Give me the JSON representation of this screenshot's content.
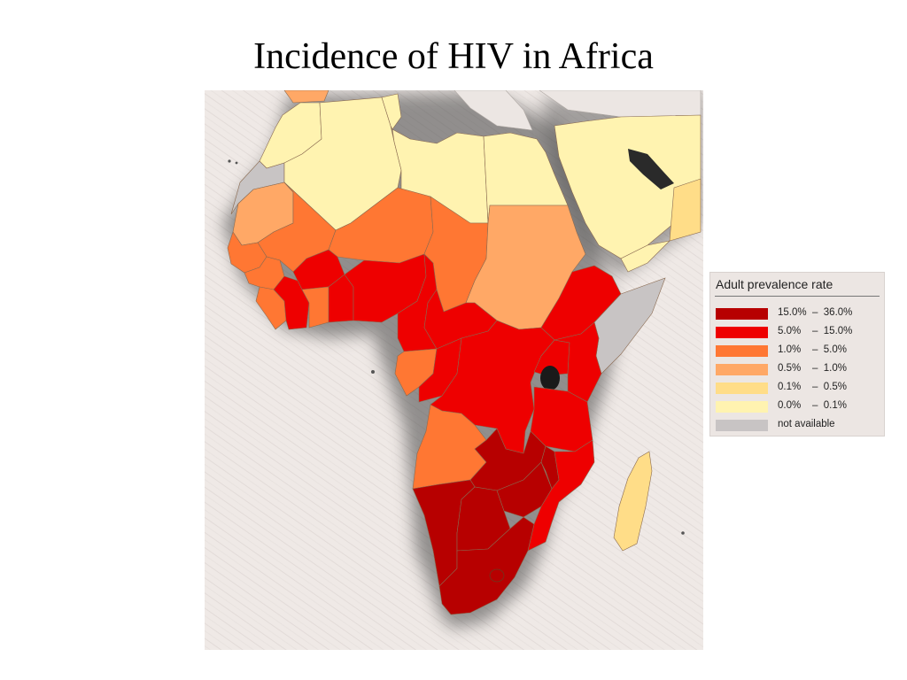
{
  "title": "Incidence of HIV in Africa",
  "legend": {
    "title": "Adult prevalence rate",
    "items": [
      {
        "label": "15.0%  –  36.0%",
        "color": "#b70000"
      },
      {
        "label": "5.0%    –  15.0%",
        "color": "#ee0000"
      },
      {
        "label": "1.0%    –  5.0%",
        "color": "#ff7733"
      },
      {
        "label": "0.5%    –  1.0%",
        "color": "#ffa866"
      },
      {
        "label": "0.1%    –  0.5%",
        "color": "#ffdd88"
      },
      {
        "label": "0.0%    –  0.1%",
        "color": "#fff3b0"
      },
      {
        "label": "not available",
        "color": "#c8c4c4"
      }
    ]
  },
  "colors": {
    "background": "#efe9e6",
    "border": "#8a6a50",
    "shadow": "#555555"
  }
}
